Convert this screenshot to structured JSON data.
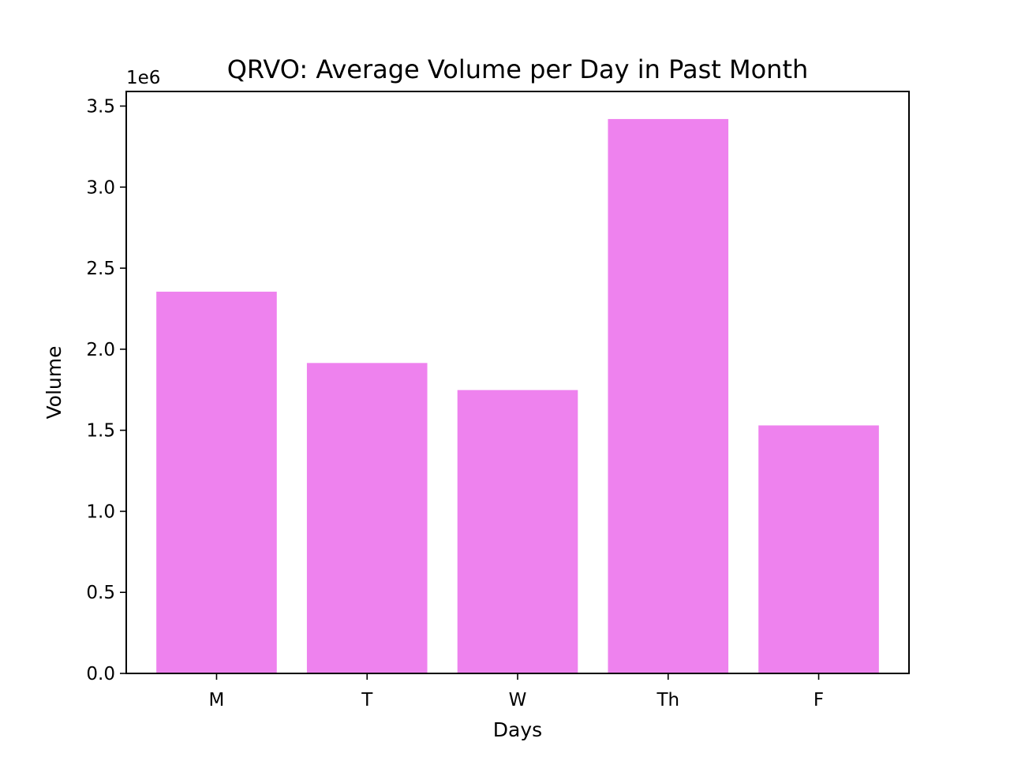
{
  "chart_data": {
    "type": "bar",
    "title": "QRVO: Average Volume per Day in Past Month",
    "xlabel": "Days",
    "ylabel": "Volume",
    "y_offset_label": "1e6",
    "categories": [
      "M",
      "T",
      "W",
      "Th",
      "F"
    ],
    "values": [
      2355000,
      1915000,
      1748000,
      3420000,
      1530000
    ],
    "ylim": [
      0,
      3590000
    ],
    "yticks": [
      0,
      500000,
      1000000,
      1500000,
      2000000,
      2500000,
      3000000,
      3500000
    ],
    "ytick_labels": [
      "0.0",
      "0.5",
      "1.0",
      "1.5",
      "2.0",
      "2.5",
      "3.0",
      "3.5"
    ],
    "bar_color": "#ee82ee",
    "grid": false,
    "legend": "none"
  }
}
